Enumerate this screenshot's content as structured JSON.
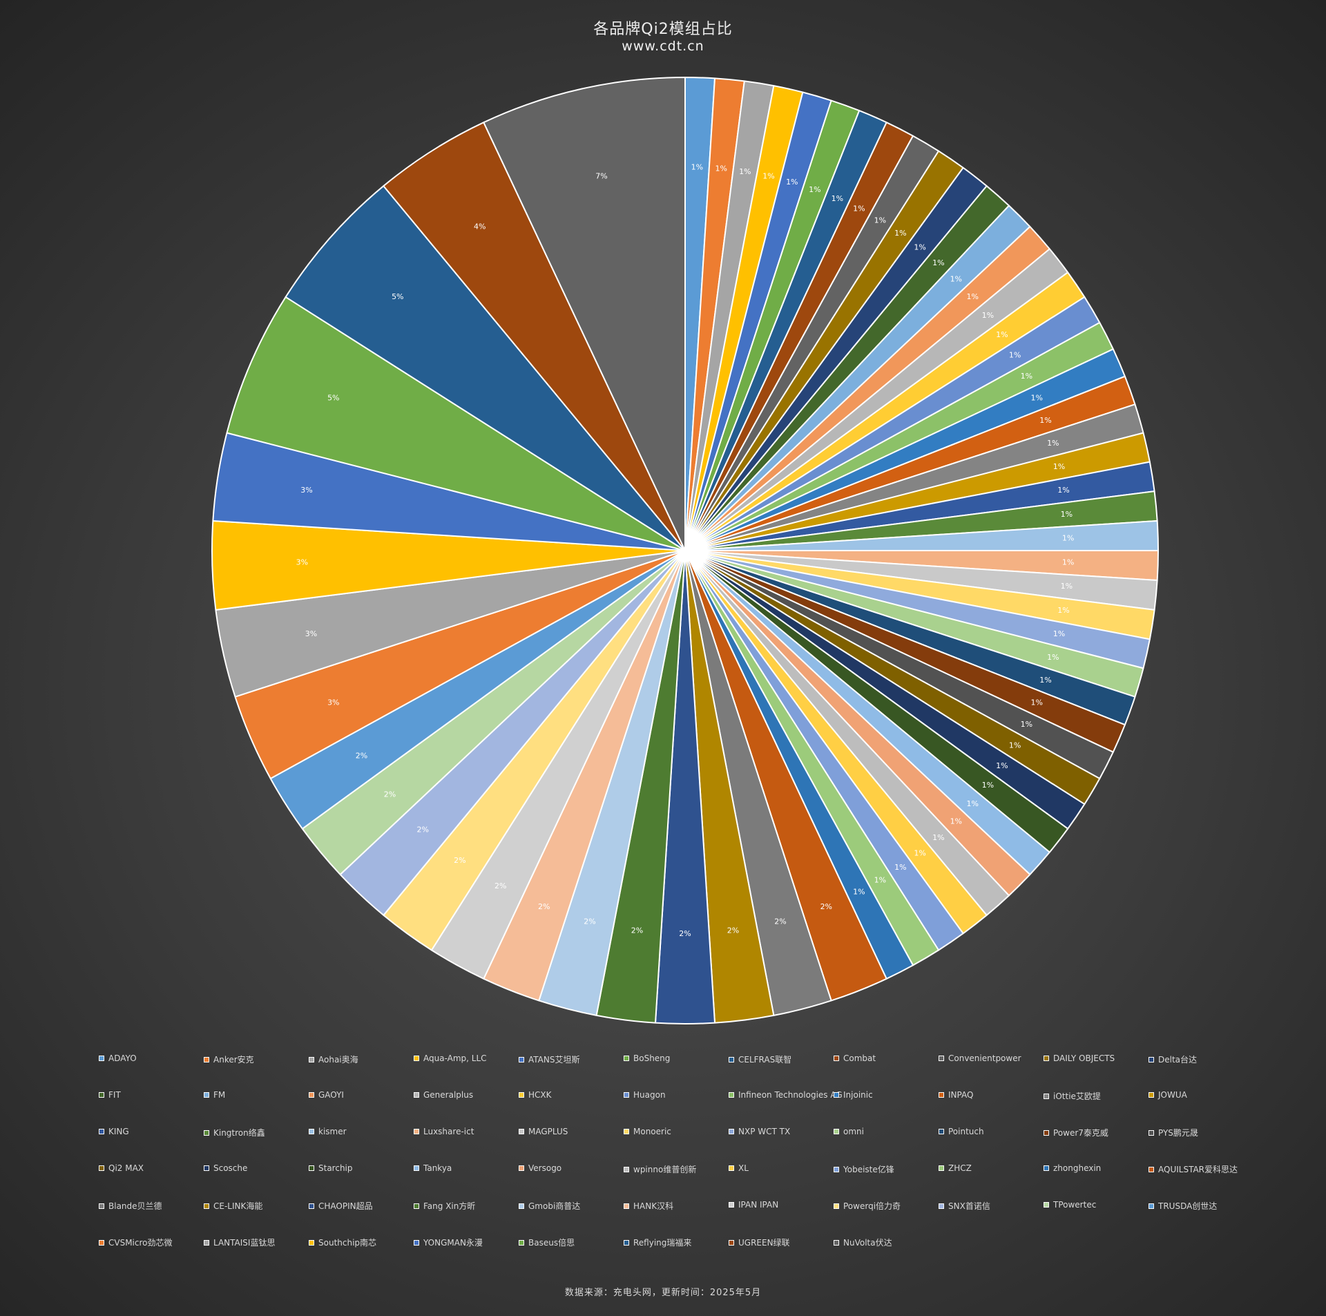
{
  "header": {
    "title": "各品牌Qi2模组占比",
    "subtitle": "www.cdt.cn"
  },
  "footer": {
    "source": "数据来源：充电头网，更新时间：2025年5月"
  },
  "chart_data": {
    "type": "pie",
    "start_angle_deg": 0,
    "direction": "clockwise",
    "legend_placement": "bottom",
    "unit": "%",
    "slices": [
      {
        "name": "ADAYO",
        "value": 1,
        "label": "1%",
        "color": "#5b9bd5"
      },
      {
        "name": "Anker安克",
        "value": 1,
        "label": "1%",
        "color": "#ed7d31"
      },
      {
        "name": "Aohai奥海",
        "value": 1,
        "label": "1%",
        "color": "#a5a5a5"
      },
      {
        "name": "Aqua-Amp, LLC",
        "value": 1,
        "label": "1%",
        "color": "#ffc000"
      },
      {
        "name": "ATANS艾坦斯",
        "value": 1,
        "label": "1%",
        "color": "#4472c4"
      },
      {
        "name": "BoSheng",
        "value": 1,
        "label": "1%",
        "color": "#70ad47"
      },
      {
        "name": "CELFRAS联智",
        "value": 1,
        "label": "1%",
        "color": "#255e91"
      },
      {
        "name": "Combat",
        "value": 1,
        "label": "1%",
        "color": "#9e480e"
      },
      {
        "name": "Convenientpower",
        "value": 1,
        "label": "1%",
        "color": "#636363"
      },
      {
        "name": "DAILY OBJECTS",
        "value": 1,
        "label": "1%",
        "color": "#997300"
      },
      {
        "name": "Delta台达",
        "value": 1,
        "label": "1%",
        "color": "#264478"
      },
      {
        "name": "FIT",
        "value": 1,
        "label": "1%",
        "color": "#43682b"
      },
      {
        "name": "FM",
        "value": 1,
        "label": "1%",
        "color": "#7cafdd"
      },
      {
        "name": "GAOYI",
        "value": 1,
        "label": "1%",
        "color": "#f1975a"
      },
      {
        "name": "Generalplus",
        "value": 1,
        "label": "1%",
        "color": "#b7b7b7"
      },
      {
        "name": "HCXK",
        "value": 1,
        "label": "1%",
        "color": "#ffcd33"
      },
      {
        "name": "Huagon",
        "value": 1,
        "label": "1%",
        "color": "#698ed0"
      },
      {
        "name": "Infineon Technologies AG",
        "value": 1,
        "label": "1%",
        "color": "#8cc168"
      },
      {
        "name": "Injoinic",
        "value": 1,
        "label": "1%",
        "color": "#327dc2"
      },
      {
        "name": "INPAQ",
        "value": 1,
        "label": "1%",
        "color": "#d26012"
      },
      {
        "name": "iOttie艾欧提",
        "value": 1,
        "label": "1%",
        "color": "#848484"
      },
      {
        "name": "JOWUA",
        "value": 1,
        "label": "1%",
        "color": "#cc9a00"
      },
      {
        "name": "KING",
        "value": 1,
        "label": "1%",
        "color": "#335aa1"
      },
      {
        "name": "Kingtron络鑫",
        "value": 1,
        "label": "1%",
        "color": "#5a8a39"
      },
      {
        "name": "kismer",
        "value": 1,
        "label": "1%",
        "color": "#9dc3e6"
      },
      {
        "name": "Luxshare-ict",
        "value": 1,
        "label": "1%",
        "color": "#f4b183"
      },
      {
        "name": "MAGPLUS",
        "value": 1,
        "label": "1%",
        "color": "#c9c9c9"
      },
      {
        "name": "Monoeric",
        "value": 1,
        "label": "1%",
        "color": "#ffd966"
      },
      {
        "name": "NXP WCT TX",
        "value": 1,
        "label": "1%",
        "color": "#8faadc"
      },
      {
        "name": "omni",
        "value": 1,
        "label": "1%",
        "color": "#a9d18e"
      },
      {
        "name": "Pointuch",
        "value": 1,
        "label": "1%",
        "color": "#1f4e79"
      },
      {
        "name": "Power7泰克威",
        "value": 1,
        "label": "1%",
        "color": "#843c0c"
      },
      {
        "name": "PYS鹏元晟",
        "value": 1,
        "label": "1%",
        "color": "#525252"
      },
      {
        "name": "Qi2 MAX",
        "value": 1,
        "label": "1%",
        "color": "#7f6000"
      },
      {
        "name": "Scosche",
        "value": 1,
        "label": "1%",
        "color": "#203864"
      },
      {
        "name": "Starchip",
        "value": 1,
        "label": "1%",
        "color": "#385723"
      },
      {
        "name": "Tankya",
        "value": 1,
        "label": "1%",
        "color": "#8fbbe6"
      },
      {
        "name": "Versogo",
        "value": 1,
        "label": "1%",
        "color": "#f0a274"
      },
      {
        "name": "wpinno维普创新",
        "value": 1,
        "label": "1%",
        "color": "#bdbdbd"
      },
      {
        "name": "XL",
        "value": 1,
        "label": "1%",
        "color": "#ffcf44"
      },
      {
        "name": "Yobeiste亿锋",
        "value": 1,
        "label": "1%",
        "color": "#7f9fd9"
      },
      {
        "name": "ZHCZ",
        "value": 1,
        "label": "1%",
        "color": "#9ccb7b"
      },
      {
        "name": "zhonghexin",
        "value": 1,
        "label": "1%",
        "color": "#2e75b6"
      },
      {
        "name": "AQUILSTAR爱科思达",
        "value": 2,
        "label": "2%",
        "color": "#c55a11"
      },
      {
        "name": "Blande贝兰德",
        "value": 2,
        "label": "2%",
        "color": "#7b7b7b"
      },
      {
        "name": "CE-LINK海能",
        "value": 2,
        "label": "2%",
        "color": "#b08600"
      },
      {
        "name": "CHAOPIN超品",
        "value": 2,
        "label": "2%",
        "color": "#2f528f"
      },
      {
        "name": "Fang Xin方昕",
        "value": 2,
        "label": "2%",
        "color": "#4e7c31"
      },
      {
        "name": "Gmobi商普达",
        "value": 2,
        "label": "2%",
        "color": "#afcce8"
      },
      {
        "name": "HANK汉科",
        "value": 2,
        "label": "2%",
        "color": "#f5bc97"
      },
      {
        "name": "IPAN IPAN",
        "value": 2,
        "label": "2%",
        "color": "#d0d0d0"
      },
      {
        "name": "Powerqi倍力奇",
        "value": 2,
        "label": "2%",
        "color": "#ffdf80"
      },
      {
        "name": "SNX首诺信",
        "value": 2,
        "label": "2%",
        "color": "#a2b6e0"
      },
      {
        "name": "TPowertec",
        "value": 2,
        "label": "2%",
        "color": "#b6d7a2"
      },
      {
        "name": "TRUSDA创世达",
        "value": 2,
        "label": "2%",
        "color": "#5b9bd5"
      },
      {
        "name": "CVSMicro劲芯微",
        "value": 3,
        "label": "3%",
        "color": "#ed7d31"
      },
      {
        "name": "LANTAISI蓝钛思",
        "value": 3,
        "label": "3%",
        "color": "#a5a5a5"
      },
      {
        "name": "Southchip南芯",
        "value": 3,
        "label": "3%",
        "color": "#ffc000"
      },
      {
        "name": "YONGMAN永漫",
        "value": 3,
        "label": "3%",
        "color": "#4472c4"
      },
      {
        "name": "Baseus倍思",
        "value": 5,
        "label": "5%",
        "color": "#70ad47"
      },
      {
        "name": "Reflying瑞福来",
        "value": 5,
        "label": "5%",
        "color": "#255e91"
      },
      {
        "name": "UGREEN绿联",
        "value": 4,
        "label": "4%",
        "color": "#9e480e"
      },
      {
        "name": "NuVolta伏达",
        "value": 7,
        "label": "7%",
        "color": "#636363"
      }
    ]
  }
}
